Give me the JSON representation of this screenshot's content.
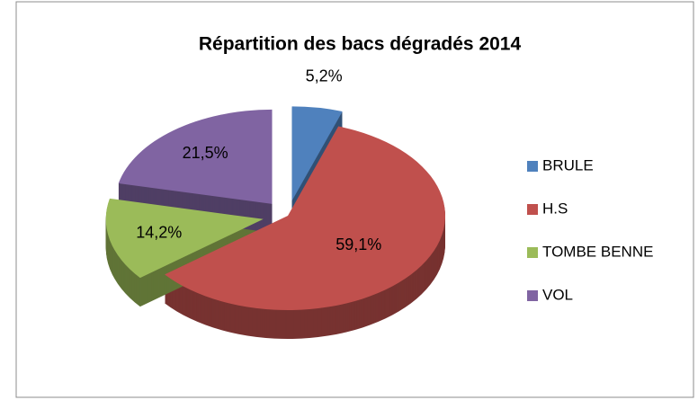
{
  "chart_data": {
    "type": "pie",
    "title": "Répartition des bacs dégradés 2014",
    "categories": [
      "BRULE",
      "H.S",
      "TOMBE BENNE",
      "VOL"
    ],
    "values": [
      5.2,
      59.1,
      14.2,
      21.5
    ],
    "value_labels": [
      "5,2%",
      "59,1%",
      "14,2%",
      "21,5%"
    ],
    "colors": [
      "#4f81bd",
      "#c0504d",
      "#9bbb59",
      "#8064a2"
    ],
    "legend": "right"
  }
}
